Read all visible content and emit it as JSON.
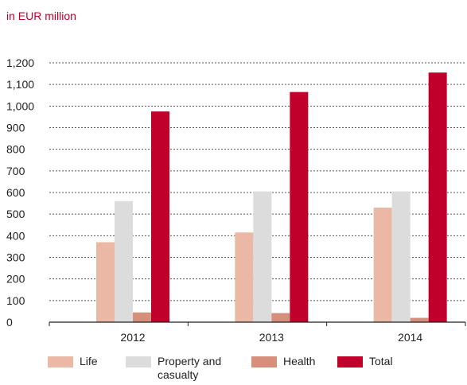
{
  "unit_label": "in EUR million",
  "chart_data": {
    "type": "bar",
    "categories": [
      "2012",
      "2013",
      "2014"
    ],
    "series": [
      {
        "name": "Life",
        "color": "#eab8a5",
        "values": [
          370,
          415,
          530
        ]
      },
      {
        "name": "Property and casualty",
        "color": "#dcdcdc",
        "values": [
          560,
          605,
          605
        ]
      },
      {
        "name": "Health",
        "color": "#d58f7a",
        "values": [
          45,
          42,
          20
        ]
      },
      {
        "name": "Total",
        "color": "#c0002a",
        "values": [
          975,
          1065,
          1155
        ]
      }
    ],
    "ylim": [
      0,
      1200
    ],
    "yticks": [
      "0",
      "100",
      "200",
      "300",
      "400",
      "500",
      "600",
      "700",
      "800",
      "900",
      "1,000",
      "1,100",
      "1,200"
    ],
    "grid": true,
    "legend": "bottom"
  }
}
